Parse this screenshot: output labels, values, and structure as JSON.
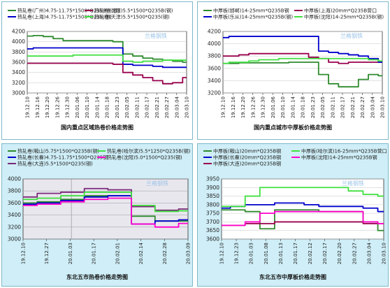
{
  "watermark": "兰格钢铁",
  "chart_data": [
    {
      "type": "line",
      "title": "国内重点区域热卷价格走势图",
      "ylim": [
        3000,
        4200
      ],
      "yticks": [
        3000,
        3200,
        3400,
        3600,
        3800,
        4000,
        4200
      ],
      "x_ticks": [
        "19.12.10",
        "19.12.16",
        "19.12.20",
        "19.12.26",
        "19.12.30",
        "20.01.06",
        "20.01.10",
        "20.01.14",
        "20.01.18",
        "20.01.23",
        "20.02.05",
        "20.02.11",
        "20.02.17",
        "20.02.21",
        "20.02.27",
        "20.03.04",
        "20.03.10"
      ],
      "x_count": 17,
      "style": {
        "bg": "#ffffff",
        "grid": "#d0d0d0",
        "axis": "#333333",
        "vline": null
      },
      "series": [
        {
          "name": "热轧卷(广州)4.75-11.75*1500*Q235B卷(钢)",
          "color": "#2e8b2e",
          "values": [
            4110,
            4120,
            4100,
            4060,
            4020,
            4020,
            4020,
            4020,
            4020,
            4000,
            3760,
            3720,
            3680,
            3660,
            3640,
            3620,
            3600
          ]
        },
        {
          "name": "热轧卷(上海)4.75-11.75*1500*Q235(钢)",
          "color": "#0000cc",
          "values": [
            3860,
            3880,
            3880,
            3880,
            3880,
            3880,
            3880,
            3880,
            3880,
            3880,
            3560,
            3540,
            3540,
            3520,
            3500,
            3500,
            3500
          ]
        },
        {
          "name": "热轧卷(沈阳)5.5*1500*Q235B(钢)",
          "color": "#99004d",
          "values": [
            3580,
            3580,
            3580,
            3580,
            3580,
            3580,
            3580,
            3580,
            3580,
            3560,
            3400,
            3350,
            3300,
            3240,
            3180,
            3200,
            3300
          ]
        },
        {
          "name": "热轧卷(天津)5.5*1500*Q235(钢)",
          "color": "#40e040",
          "values": [
            3720,
            3720,
            3720,
            3720,
            3720,
            3740,
            3740,
            3740,
            3740,
            3740,
            3620,
            3600,
            3620,
            3620,
            3640,
            3640,
            3640
          ]
        }
      ]
    },
    {
      "type": "line",
      "title": "国内重点城市中厚板价格走势图",
      "ylim": [
        3200,
        4200
      ],
      "yticks": [
        3200,
        3400,
        3600,
        3800,
        4000,
        4200
      ],
      "x_ticks": [
        "19.12.10",
        "19.12.16",
        "19.12.20",
        "19.12.26",
        "19.12.30",
        "20.01.06",
        "20.01.10",
        "20.01.14",
        "20.01.18",
        "20.01.23",
        "20.02.05",
        "20.02.11",
        "20.02.17",
        "20.02.21",
        "20.02.27",
        "20.03.04",
        "20.03.10"
      ],
      "x_count": 17,
      "style": {
        "bg": "#ffffff",
        "grid": "#d0d0d0",
        "axis": "#333333",
        "vline": null
      },
      "series": [
        {
          "name": "中厚板(邯郸)14-25mm*Q235B钢",
          "color": "#2e8b2e",
          "values": [
            3680,
            3680,
            3690,
            3690,
            3690,
            3690,
            3690,
            3700,
            3700,
            3700,
            3500,
            3350,
            3300,
            3300,
            3420,
            3500,
            3480
          ]
        },
        {
          "name": "中厚板(上海)20mm*Q235B营口",
          "color": "#99004d",
          "values": [
            3800,
            3800,
            3820,
            3840,
            3840,
            3840,
            3840,
            3840,
            3840,
            3780,
            3760,
            3700,
            3680,
            3700,
            3700,
            3700,
            3700
          ]
        },
        {
          "name": "中厚板(乐从)14-25mm*Q235B(钢)",
          "color": "#0000cc",
          "values": [
            4100,
            4120,
            4120,
            4120,
            4120,
            4120,
            4120,
            4120,
            4120,
            4120,
            3880,
            3860,
            3840,
            3820,
            3800,
            3760,
            3700
          ]
        },
        {
          "name": "中厚板(沈阳)14-25mm*Q235B(钢)",
          "color": "#40e040",
          "values": [
            3680,
            3700,
            3700,
            3720,
            3740,
            3740,
            3760,
            3760,
            3760,
            3760,
            3760,
            3760,
            3760,
            3760,
            3760,
            3740,
            3720
          ]
        }
      ]
    },
    {
      "type": "line",
      "title": "东北五市热卷价格走势图",
      "ylim": [
        3000,
        4000
      ],
      "yticks": [
        3000,
        3200,
        3400,
        3600,
        3800,
        4000
      ],
      "x_ticks": [
        "19.12.10",
        "19.12.27",
        "20.01.03",
        "20.01.17",
        "20.02.01",
        "20.02.14",
        "20.02.28",
        "20.03.09"
      ],
      "x_count": 8,
      "style": {
        "bg": "#e9e7ee",
        "grid": "#a8a8b0",
        "axis": "#333333",
        "vline": 2.05
      },
      "series": [
        {
          "name": "热轧卷(鞍山)5.75*1500*Q235B(钢)",
          "color": "#2e8b2e",
          "values": [
            3600,
            3620,
            3660,
            3720,
            3720,
            3380,
            3300,
            3300
          ]
        },
        {
          "name": "热轧卷(长春)4.75-11.75*1500*Q235钢",
          "color": "#0000cc",
          "values": [
            3580,
            3600,
            3640,
            3700,
            3720,
            3250,
            3300,
            3320
          ]
        },
        {
          "name": "热轧卷(大连)5.5*1500*Q235(钢)",
          "color": "#7a2a7a",
          "values": [
            3700,
            3760,
            3780,
            3840,
            3820,
            3540,
            3480,
            3500
          ]
        },
        {
          "name": "热轧卷(哈尔滨)5.5*1250*Q235B(钢)",
          "color": "#40e040",
          "values": [
            3660,
            3680,
            3720,
            3780,
            3780,
            3560,
            3460,
            3470
          ]
        },
        {
          "name": "热轧卷(沈阳)5.0*1500*Q235(钢)",
          "color": "#ff00cc",
          "values": [
            3560,
            3580,
            3620,
            3660,
            3680,
            3250,
            3200,
            3260
          ]
        }
      ]
    },
    {
      "type": "line",
      "title": "东北五市中厚板价格走势图",
      "ylim": [
        3600,
        3950
      ],
      "yticks": [
        3600,
        3650,
        3700,
        3750,
        3800,
        3850,
        3900,
        3950
      ],
      "x_ticks": [
        "19.12.10",
        "19.12.23",
        "20.01.03",
        "20.01.08",
        "20.01.13",
        "20.01.17",
        "20.02.12",
        "20.02.17",
        "20.02.20",
        "20.02.27",
        "20.03.04",
        "20.03.10"
      ],
      "x_count": 12,
      "style": {
        "bg": "#ffffff",
        "grid": "#d0d0d0",
        "axis": "#333333",
        "vline": null
      },
      "series": [
        {
          "name": "中厚板(鞍山)20mm*Q235B钢",
          "color": "#2e8b2e",
          "values": [
            3770,
            3770,
            3760,
            3660,
            3770,
            3770,
            3770,
            3760,
            3760,
            3760,
            3700,
            3650
          ]
        },
        {
          "name": "中厚板(长春)20mm*Q235B钢",
          "color": "#0000cc",
          "values": [
            3780,
            3790,
            3800,
            3800,
            3810,
            3810,
            3800,
            3790,
            3790,
            3790,
            3780,
            3760
          ]
        },
        {
          "name": "中厚板(大连)20mm*Q235B钢",
          "color": "#99004d",
          "values": [
            3680,
            3680,
            3690,
            3690,
            3700,
            3700,
            3700,
            3700,
            3700,
            3700,
            3690,
            3690
          ]
        },
        {
          "name": "中厚板(哈尔滨)16-25mm*Q235B营口",
          "color": "#40e040",
          "values": [
            3790,
            3790,
            3850,
            3900,
            3900,
            3900,
            3900,
            3900,
            3900,
            3880,
            3860,
            3850
          ]
        },
        {
          "name": "中厚板(沈阳)14-25mm*Q235B钢",
          "color": "#ff00cc",
          "values": [
            3680,
            3680,
            3700,
            3750,
            3760,
            3760,
            3760,
            3760,
            3760,
            3760,
            3700,
            3690
          ]
        }
      ]
    }
  ]
}
